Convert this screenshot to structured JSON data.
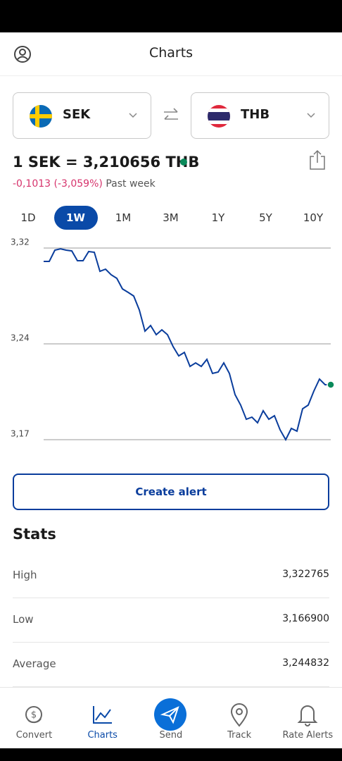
{
  "header": {
    "title": "Charts"
  },
  "from": {
    "code": "SEK"
  },
  "to": {
    "code": "THB"
  },
  "rate": "1 SEK = 3,210656 THB",
  "change": "-0,1013 (-3,059%)",
  "period": "Past week",
  "ranges": [
    "1D",
    "1W",
    "1M",
    "3M",
    "1Y",
    "5Y",
    "10Y"
  ],
  "selected_range": "1W",
  "chart_data": {
    "type": "line",
    "color": "#0a3d9c",
    "values": [
      3.3093,
      3.3093,
      3.3183,
      3.3194,
      3.3183,
      3.3177,
      3.3099,
      3.3099,
      3.3172,
      3.3166,
      3.3014,
      3.3031,
      3.2986,
      3.2958,
      3.2874,
      3.2846,
      3.2817,
      3.2705,
      3.2536,
      3.2581,
      3.2508,
      3.2547,
      3.2508,
      3.2413,
      3.2339,
      3.2367,
      3.2255,
      3.2283,
      3.2255,
      3.2311,
      3.2199,
      3.221,
      3.2283,
      3.2199,
      3.203,
      3.1946,
      3.1833,
      3.185,
      3.1805,
      3.1901,
      3.1833,
      3.1861,
      3.1749,
      3.167,
      3.176,
      3.1738,
      3.1917,
      3.1946,
      3.2058,
      3.2154,
      3.2109,
      3.2109
    ],
    "ylim": [
      3.167,
      3.32
    ],
    "yticks": [
      {
        "value": 3.32,
        "label": "3,32"
      },
      {
        "value": 3.2435,
        "label": "3,24"
      },
      {
        "value": 3.167,
        "label": "3,17"
      }
    ],
    "grid": true,
    "end_marker_color": "#0a8a5a"
  },
  "button": "Create alert",
  "stats": {
    "title": "Stats",
    "rows": [
      {
        "label": "High",
        "value": "3,322765"
      },
      {
        "label": "Low",
        "value": "3,166900"
      },
      {
        "label": "Average",
        "value": "3,244832"
      }
    ]
  },
  "nav": [
    "Convert",
    "Charts",
    "Send",
    "Track",
    "Rate Alerts"
  ],
  "active_nav": "Charts"
}
